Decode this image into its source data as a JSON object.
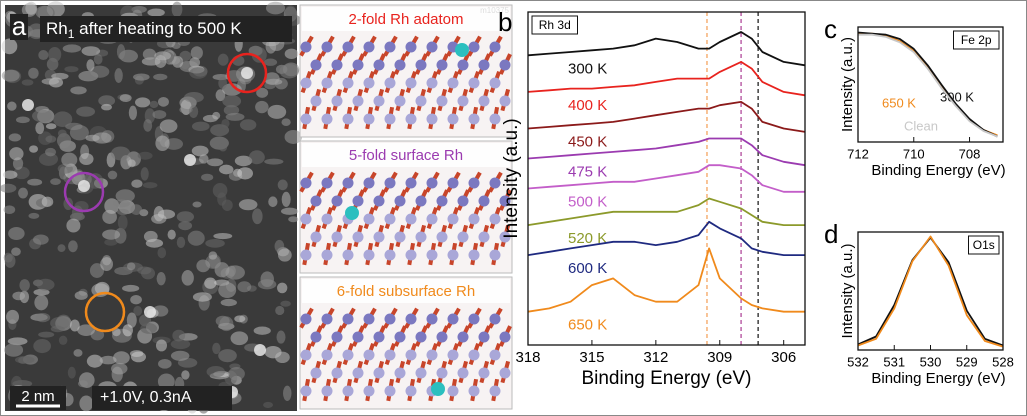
{
  "panel_a": {
    "letter": "a",
    "title": "Rh",
    "title_subscript": "1",
    "title_rest": " after heating to 500 K",
    "image_id": "m10375",
    "scale_bar": "2 nm",
    "conditions": "+1.0V, 0.3nA",
    "models": [
      "2-fold Rh adatom",
      "5-fold surface Rh",
      "6-fold subsurface Rh"
    ],
    "model_colors": [
      "#e8231e",
      "#9b3bb0",
      "#f08a1c"
    ]
  },
  "chart_data": [
    {
      "type": "line",
      "letter": "b",
      "label": "Rh 3d",
      "x_label": "Binding Energy (eV)",
      "y_label": "Intensity (a.u.)",
      "x": [
        318,
        317,
        316,
        315,
        314,
        313,
        312,
        311,
        310,
        309.5,
        309,
        308,
        307.5,
        307,
        306,
        305
      ],
      "xlim": [
        318,
        305
      ],
      "xticks": [
        318,
        315,
        312,
        309,
        306
      ],
      "ylim": [
        0,
        100
      ],
      "reference_lines": [
        {
          "value": 309.6,
          "color": "#f4a460"
        },
        {
          "value": 308,
          "color": "#b04a9a"
        },
        {
          "value": 307.2,
          "color": "#222222"
        }
      ],
      "series": [
        {
          "name": "300 K",
          "color": "#111111",
          "values": [
            87,
            87.5,
            88,
            88.5,
            89,
            90,
            92,
            91,
            89,
            89,
            91,
            94,
            92,
            88,
            85,
            84
          ]
        },
        {
          "name": "400 K",
          "color": "#e8231e",
          "values": [
            76,
            76.5,
            77,
            77,
            77.5,
            78,
            79,
            80,
            80,
            80,
            82,
            85,
            83,
            79,
            76,
            75
          ]
        },
        {
          "name": "450 K",
          "color": "#8b1a1a",
          "values": [
            65,
            65.5,
            66,
            66.5,
            67,
            68,
            69,
            70,
            71,
            71,
            72,
            73,
            71,
            67,
            65,
            64
          ]
        },
        {
          "name": "475 K",
          "color": "#9b3bb0",
          "values": [
            56,
            56.5,
            57,
            57.5,
            58,
            58.5,
            59,
            60,
            61,
            62,
            62,
            62,
            60,
            57,
            55,
            54
          ]
        },
        {
          "name": "500 K",
          "color": "#c35ec9",
          "values": [
            47,
            47.5,
            48,
            48.5,
            49,
            49,
            50,
            51,
            52,
            54,
            54,
            53,
            51,
            48,
            46,
            46
          ]
        },
        {
          "name": "520 K",
          "color": "#8c9a2b",
          "values": [
            36,
            37,
            38,
            39,
            40,
            40,
            40,
            40,
            42,
            44,
            43,
            41,
            39,
            37,
            36,
            36
          ]
        },
        {
          "name": "600 K",
          "color": "#1f2a80",
          "values": [
            27,
            28,
            29,
            30,
            31,
            31,
            30,
            31,
            33,
            37,
            35,
            32,
            29,
            28,
            27,
            27
          ]
        },
        {
          "name": "650 K",
          "color": "#f08a1c",
          "values": [
            10,
            11,
            13,
            18,
            20,
            15,
            13,
            13,
            18,
            29,
            20,
            14,
            12,
            11,
            10,
            10
          ]
        }
      ]
    },
    {
      "type": "line",
      "letter": "c",
      "label": "Fe 2p",
      "x_label": "Binding Energy (eV)",
      "y_label": "Intensity (a.u.)",
      "x": [
        712,
        711.5,
        711,
        710.5,
        710,
        709.5,
        709,
        708.5,
        708,
        707.5,
        707
      ],
      "xlim": [
        712,
        706.8
      ],
      "xticks": [
        712,
        710,
        708
      ],
      "ylim": [
        0,
        105
      ],
      "series": [
        {
          "name": "650 K",
          "color": "#f08a1c",
          "values": [
            99,
            99,
            97,
            92,
            83,
            68,
            50,
            34,
            20,
            11,
            6
          ]
        },
        {
          "name": "300 K",
          "color": "#111111",
          "values": [
            100,
            99,
            98,
            94,
            85,
            70,
            52,
            35,
            21,
            11,
            5
          ]
        },
        {
          "name": "Clean",
          "color": "#c8c8c8",
          "values": [
            98,
            98,
            96,
            91,
            82,
            67,
            49,
            33,
            19,
            10,
            5
          ]
        }
      ]
    },
    {
      "type": "line",
      "letter": "d",
      "label": "O1s",
      "x_label": "Binding Energy (eV)",
      "y_label": "Intensity (a.u.)",
      "x": [
        532,
        531.5,
        531,
        530.5,
        530,
        529.5,
        529,
        528.5,
        528
      ],
      "xlim": [
        532,
        528
      ],
      "xticks": [
        532,
        531,
        530,
        529,
        528
      ],
      "ylim": [
        0,
        105
      ],
      "series": [
        {
          "color": "#111111",
          "values": [
            5,
            12,
            40,
            80,
            100,
            78,
            35,
            10,
            4
          ]
        },
        {
          "color": "#f08a1c",
          "values": [
            4,
            10,
            37,
            79,
            101,
            75,
            31,
            8,
            3
          ]
        }
      ]
    }
  ]
}
